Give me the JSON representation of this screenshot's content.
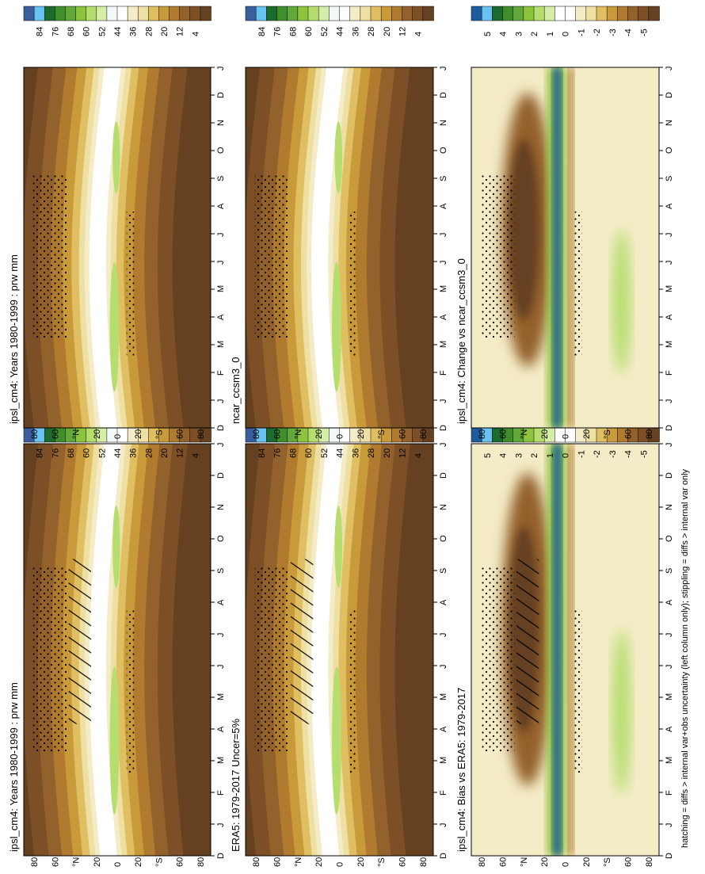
{
  "figure": {
    "footnote": "hatching = diffs > internal var+obs uncertainty (left column only); stippling = diffs > internal var only"
  },
  "colors": {
    "abs_scale": [
      "#3a5f9c",
      "#68c3f2",
      "#1c6b2e",
      "#3f8f2d",
      "#63a83a",
      "#8cc43e",
      "#b6de6e",
      "#d6eda7",
      "#f2f8fa",
      "#ffffff",
      "#f4ecc7",
      "#eedfa2",
      "#e0bf62",
      "#c99a3a",
      "#b07a2f",
      "#93612b",
      "#7c4f26",
      "#654021"
    ],
    "diff_scale": [
      "#1f5c9e",
      "#69c2f2",
      "#1c6b2e",
      "#3e8f2c",
      "#63a83a",
      "#8cc43e",
      "#b6de6e",
      "#d6eda7",
      "#ffffff",
      "#ffffff",
      "#f4ecc7",
      "#eedfa2",
      "#e0bf62",
      "#c99a3a",
      "#b07a2f",
      "#93612b",
      "#7c4f26",
      "#654021"
    ]
  },
  "chart_data": [
    {
      "type": "heatmap",
      "title": "ipsl_cm4: Years 1980-1999 : prw mm",
      "x": [
        "D",
        "J",
        "F",
        "M",
        "A",
        "M",
        "J",
        "J",
        "A",
        "S",
        "O",
        "N",
        "D",
        "J"
      ],
      "y": [
        "80",
        "60",
        "°N",
        "20",
        "0",
        "20",
        "°S",
        "60",
        "80"
      ],
      "ylim": [
        -90,
        90
      ],
      "hatching": true,
      "stippling": true
    },
    {
      "type": "heatmap",
      "title": "ipsl_cm4: Years 1980-1999 : prw mm",
      "x": [
        "D",
        "J",
        "F",
        "M",
        "A",
        "M",
        "J",
        "J",
        "A",
        "S",
        "O",
        "N",
        "D",
        "J"
      ],
      "y": [
        "80",
        "60",
        "°N",
        "20",
        "0",
        "20",
        "°S",
        "60",
        "80"
      ],
      "ylim": [
        -90,
        90
      ],
      "stippling": true
    },
    {
      "type": "heatmap",
      "title": "ERA5: 1979-2017 Uncer=5%",
      "x": [
        "D",
        "J",
        "F",
        "M",
        "A",
        "M",
        "J",
        "J",
        "A",
        "S",
        "O",
        "N",
        "D",
        "J"
      ],
      "y": [
        "80",
        "60",
        "°N",
        "20",
        "0",
        "20",
        "°S",
        "60",
        "80"
      ],
      "ylim": [
        -90,
        90
      ],
      "hatching": true,
      "stippling": true
    },
    {
      "type": "heatmap",
      "title": "ncar_ccsm3_0",
      "x": [
        "D",
        "J",
        "F",
        "M",
        "A",
        "M",
        "J",
        "J",
        "A",
        "S",
        "O",
        "N",
        "D",
        "J"
      ],
      "y": [
        "80",
        "60",
        "°N",
        "20",
        "0",
        "20",
        "°S",
        "60",
        "80"
      ],
      "ylim": [
        -90,
        90
      ],
      "stippling": true
    },
    {
      "type": "heatmap",
      "title": "ipsl_cm4: Bias vs ERA5: 1979-2017",
      "x": [
        "D",
        "J",
        "F",
        "M",
        "A",
        "M",
        "J",
        "J",
        "A",
        "S",
        "O",
        "N",
        "D",
        "J"
      ],
      "y": [
        "80",
        "60",
        "°N",
        "20",
        "0",
        "20",
        "°S",
        "60",
        "80"
      ],
      "ylim": [
        -90,
        90
      ],
      "hatching": true,
      "stippling": true
    },
    {
      "type": "heatmap",
      "title": "ipsl_cm4: Change vs ncar_ccsm3_0",
      "x": [
        "D",
        "J",
        "F",
        "M",
        "A",
        "M",
        "J",
        "J",
        "A",
        "S",
        "O",
        "N",
        "D",
        "J"
      ],
      "y": [
        "80",
        "60",
        "°N",
        "20",
        "0",
        "20",
        "°S",
        "60",
        "80"
      ],
      "ylim": [
        -90,
        90
      ],
      "stippling": true
    }
  ],
  "colorbars": {
    "abs_labels": [
      "84",
      "76",
      "68",
      "60",
      "52",
      "44",
      "36",
      "28",
      "20",
      "12",
      "4"
    ],
    "diff_labels": [
      "5",
      "4",
      "3",
      "2",
      "1",
      "0",
      "-1",
      "-2",
      "-3",
      "-4",
      "-5"
    ]
  }
}
